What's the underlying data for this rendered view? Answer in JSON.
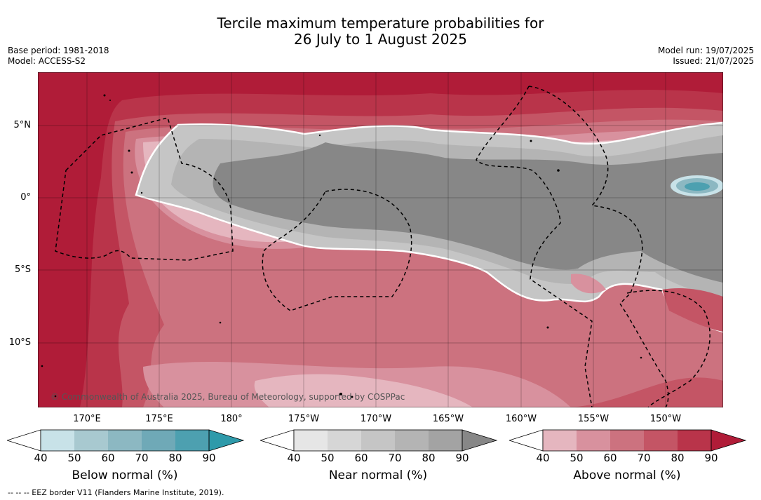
{
  "header": {
    "title_line1": "Tercile maximum temperature probabilities for",
    "title_line2": "26 July to 1 August 2025",
    "base_period": "Base period: 1981-2018",
    "model": "Model: ACCESS-S2",
    "model_run": "Model run: 19/07/2025",
    "issued": "Issued: 21/07/2025"
  },
  "map": {
    "region": "Western and Central Pacific",
    "lat_labels": [
      "5°N",
      "0°",
      "5°S",
      "10°S"
    ],
    "lon_labels": [
      "170°E",
      "175°E",
      "180°",
      "175°W",
      "170°W",
      "165°W",
      "160°W",
      "155°W",
      "150°W"
    ],
    "copyright": "© Commonwealth of Australia 2025, Bureau of Meteorology, supported by COSPPac",
    "dominant_category": "Above normal"
  },
  "legends": [
    {
      "label": "Below normal (%)",
      "ticks": [
        "40",
        "50",
        "60",
        "70",
        "80",
        "90"
      ],
      "colors": [
        "#ffffff",
        "#c8e2e8",
        "#a8c9d0",
        "#8cb8c2",
        "#6fa9b7",
        "#4da0b0",
        "#2e9aaa"
      ]
    },
    {
      "label": "Near normal (%)",
      "ticks": [
        "40",
        "50",
        "60",
        "70",
        "80",
        "90"
      ],
      "colors": [
        "#ffffff",
        "#e6e6e6",
        "#d6d6d6",
        "#c5c5c5",
        "#b4b4b4",
        "#a3a3a3",
        "#878787"
      ]
    },
    {
      "label": "Above normal (%)",
      "ticks": [
        "40",
        "50",
        "60",
        "70",
        "80",
        "90"
      ],
      "colors": [
        "#ffffff",
        "#e5b6bf",
        "#d8919e",
        "#cc727f",
        "#c45565",
        "#b9344a",
        "#b01c38"
      ]
    }
  ],
  "footer": {
    "eez_note": "--  --  -- EEZ border V11 (Flanders Marine Institute, 2019)."
  }
}
